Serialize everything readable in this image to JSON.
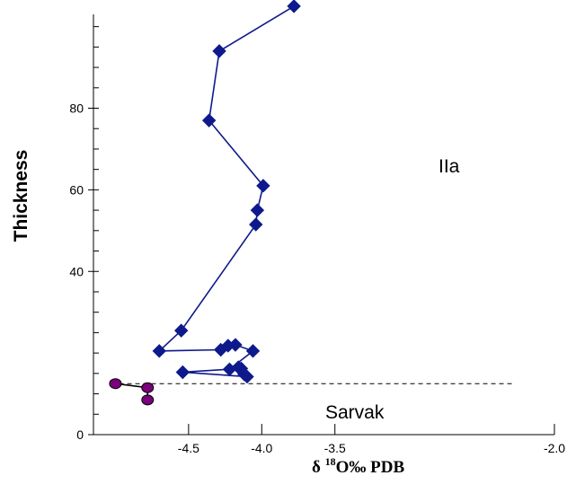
{
  "chart_data": {
    "type": "scatter",
    "title": "",
    "xlabel_main": "δ ",
    "xlabel_sup": "18",
    "xlabel_rest": "O‰ PDB",
    "ylabel": "Thickness",
    "xlim": [
      -5.15,
      -2.0
    ],
    "ylim": [
      0,
      103
    ],
    "x_tick_values": [
      -4.5,
      -4.0,
      -3.5,
      -2.0
    ],
    "x_tick_labels": [
      "-4.5",
      "-4.0",
      "-3.5",
      "-2.0"
    ],
    "y_tick_values": [
      0,
      40,
      60,
      80
    ],
    "y_tick_labels": [
      "0",
      "40",
      "60",
      "80"
    ],
    "y_minor_step": 5,
    "boundary_y": 12.5,
    "annotations": [
      {
        "text": "IIa",
        "x": -3.05,
        "y": 75
      },
      {
        "text": "Sarvak",
        "x": -3.55,
        "y": 5.5
      }
    ],
    "series": [
      {
        "marker": "diamond",
        "color": "#0e1a8c",
        "line_color": "#0e1a8c",
        "points": [
          [
            -3.78,
            105
          ],
          [
            -4.29,
            94
          ],
          [
            -4.36,
            77
          ],
          [
            -3.99,
            61
          ],
          [
            -4.03,
            55
          ],
          [
            -4.04,
            51.5
          ],
          [
            -4.55,
            25.5
          ],
          [
            -4.7,
            20.5
          ],
          [
            -4.28,
            20.8
          ],
          [
            -4.23,
            21.8
          ],
          [
            -4.18,
            22
          ],
          [
            -4.06,
            20.5
          ],
          [
            -4.22,
            16
          ],
          [
            -4.16,
            16.5
          ],
          [
            -4.12,
            14.8
          ],
          [
            -4.14,
            16.2
          ],
          [
            -4.54,
            15.3
          ],
          [
            -4.1,
            14.2
          ]
        ]
      },
      {
        "marker": "circle",
        "color": "#7b007b",
        "line_color": "#000000",
        "points": [
          [
            -5.0,
            12.5
          ],
          [
            -4.78,
            11.5
          ],
          [
            -4.78,
            8.5
          ]
        ]
      }
    ],
    "grid": false,
    "legend": "none"
  }
}
